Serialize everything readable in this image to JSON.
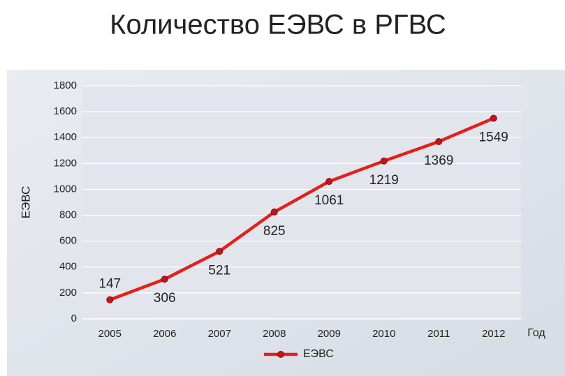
{
  "chart_data": {
    "type": "line",
    "title": "Количество ЕЭВС в РГВС",
    "y_label": "ЕЭВС",
    "x_label": "Год",
    "categories": [
      "2005",
      "2006",
      "2007",
      "2008",
      "2009",
      "2010",
      "2011",
      "2012"
    ],
    "series": [
      {
        "name": "ЕЭВС",
        "color": "#e3201b",
        "values": [
          147,
          306,
          521,
          825,
          1061,
          1219,
          1369,
          1549
        ]
      }
    ],
    "ylim": [
      0,
      1800
    ],
    "yticks": [
      0,
      200,
      400,
      600,
      800,
      1000,
      1200,
      1400,
      1600,
      1800
    ],
    "grid": true,
    "legend": "bottom"
  }
}
